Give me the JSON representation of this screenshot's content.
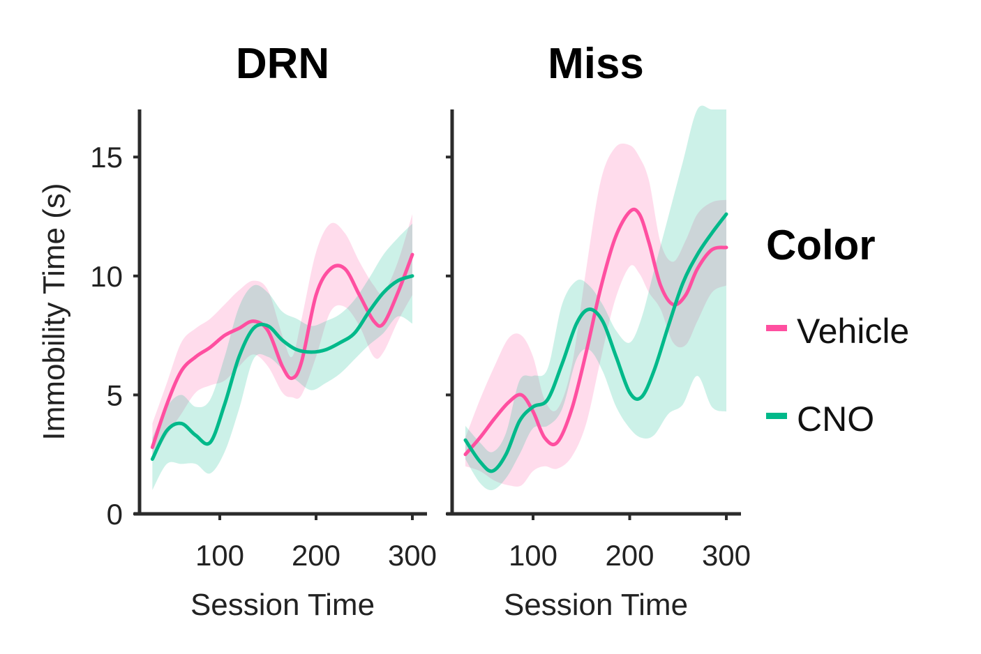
{
  "chart_data": {
    "type": "line",
    "ylabel": "Immobility Time (s)",
    "xlabel": "Session Time",
    "xlim": [
      20,
      305
    ],
    "ylim": [
      0,
      17
    ],
    "xticks": [
      100,
      200,
      300
    ],
    "yticks": [
      0,
      5,
      10,
      15
    ],
    "legend": {
      "title": "Color",
      "placement": "right",
      "entries": [
        {
          "name": "Vehicle",
          "color": "#ff4fa0"
        },
        {
          "name": "CNO",
          "color": "#00b98a"
        }
      ]
    },
    "panels": [
      {
        "title": "DRN",
        "series": [
          {
            "name": "Vehicle",
            "color": "#ff4fa0",
            "x": [
              30,
              45,
              60,
              75,
              90,
              105,
              120,
              135,
              150,
              165,
              175,
              185,
              200,
              215,
              230,
              245,
              260,
              270,
              285,
              300
            ],
            "y": [
              2.8,
              4.6,
              6.0,
              6.6,
              7.0,
              7.5,
              7.8,
              8.1,
              7.7,
              6.2,
              5.7,
              6.4,
              9.2,
              10.3,
              10.3,
              9.2,
              8.1,
              8.0,
              9.3,
              10.9
            ],
            "lower": [
              2.3,
              3.3,
              4.2,
              5.1,
              5.4,
              5.6,
              6.2,
              6.7,
              6.2,
              5.1,
              4.9,
              5.0,
              6.6,
              8.5,
              8.7,
              7.9,
              6.6,
              6.8,
              8.1,
              9.2
            ],
            "upper": [
              3.8,
              5.5,
              7.2,
              7.8,
              8.2,
              8.8,
              9.4,
              9.8,
              9.4,
              7.5,
              6.6,
              8.2,
              11.0,
              12.2,
              11.8,
              10.6,
              9.6,
              9.3,
              10.6,
              12.6
            ]
          },
          {
            "name": "CNO",
            "color": "#00b98a",
            "x": [
              30,
              45,
              60,
              75,
              90,
              105,
              120,
              135,
              150,
              165,
              180,
              195,
              210,
              225,
              240,
              255,
              270,
              285,
              300
            ],
            "y": [
              2.3,
              3.5,
              3.8,
              3.3,
              3.0,
              4.6,
              6.6,
              7.8,
              7.9,
              7.3,
              6.9,
              6.8,
              6.9,
              7.2,
              7.6,
              8.5,
              9.3,
              9.8,
              10.0
            ],
            "lower": [
              1.0,
              2.1,
              2.1,
              2.1,
              1.7,
              2.6,
              4.4,
              6.5,
              6.6,
              6.1,
              5.6,
              5.2,
              5.5,
              5.9,
              6.5,
              7.1,
              7.6,
              8.3,
              8.0
            ],
            "upper": [
              3.2,
              4.5,
              5.0,
              4.5,
              4.8,
              6.6,
              8.7,
              9.6,
              9.3,
              8.5,
              8.2,
              7.9,
              8.1,
              8.4,
              9.0,
              9.9,
              10.9,
              11.6,
              12.2
            ]
          }
        ]
      },
      {
        "title": "Miss",
        "series": [
          {
            "name": "Vehicle",
            "color": "#ff4fa0",
            "x": [
              30,
              45,
              60,
              75,
              88,
              100,
              112,
              125,
              140,
              155,
              170,
              185,
              200,
              210,
              220,
              232,
              245,
              258,
              270,
              285,
              300
            ],
            "y": [
              2.5,
              3.2,
              4.0,
              4.7,
              5.0,
              4.3,
              3.2,
              3.0,
              4.4,
              6.8,
              9.5,
              11.6,
              12.7,
              12.6,
              11.4,
              9.6,
              8.8,
              9.2,
              10.3,
              11.1,
              11.2
            ],
            "lower": [
              2.0,
              1.8,
              1.4,
              1.2,
              1.2,
              1.8,
              2.0,
              1.9,
              2.4,
              3.8,
              6.5,
              9.0,
              10.4,
              10.1,
              9.3,
              8.6,
              7.2,
              7.1,
              8.1,
              9.3,
              9.6
            ],
            "upper": [
              3.2,
              4.8,
              6.2,
              7.4,
              7.5,
              6.6,
              4.8,
              4.4,
              6.2,
              10.3,
              14.0,
              15.4,
              15.5,
              15.0,
              14.0,
              11.4,
              10.6,
              11.5,
              12.6,
              13.1,
              13.2
            ]
          },
          {
            "name": "CNO",
            "color": "#00b98a",
            "x": [
              30,
              45,
              58,
              72,
              86,
              100,
              115,
              130,
              145,
              158,
              172,
              186,
              200,
              212,
              225,
              240,
              255,
              270,
              285,
              300
            ],
            "y": [
              3.1,
              2.2,
              1.8,
              2.5,
              3.9,
              4.5,
              4.8,
              6.3,
              8.0,
              8.6,
              8.1,
              6.6,
              5.1,
              4.9,
              6.0,
              7.9,
              9.7,
              10.9,
              11.8,
              12.6
            ],
            "lower": [
              2.3,
              1.3,
              1.0,
              1.5,
              2.5,
              3.6,
              3.7,
              4.4,
              6.5,
              6.9,
              6.0,
              4.5,
              3.6,
              3.2,
              3.3,
              4.2,
              4.6,
              5.8,
              4.5,
              4.3
            ],
            "upper": [
              3.7,
              3.0,
              2.6,
              3.4,
              5.6,
              5.8,
              6.1,
              8.8,
              9.8,
              9.6,
              8.8,
              7.7,
              7.2,
              8.2,
              10.2,
              12.5,
              14.8,
              17.0,
              17.0,
              17.0
            ]
          }
        ]
      }
    ]
  }
}
